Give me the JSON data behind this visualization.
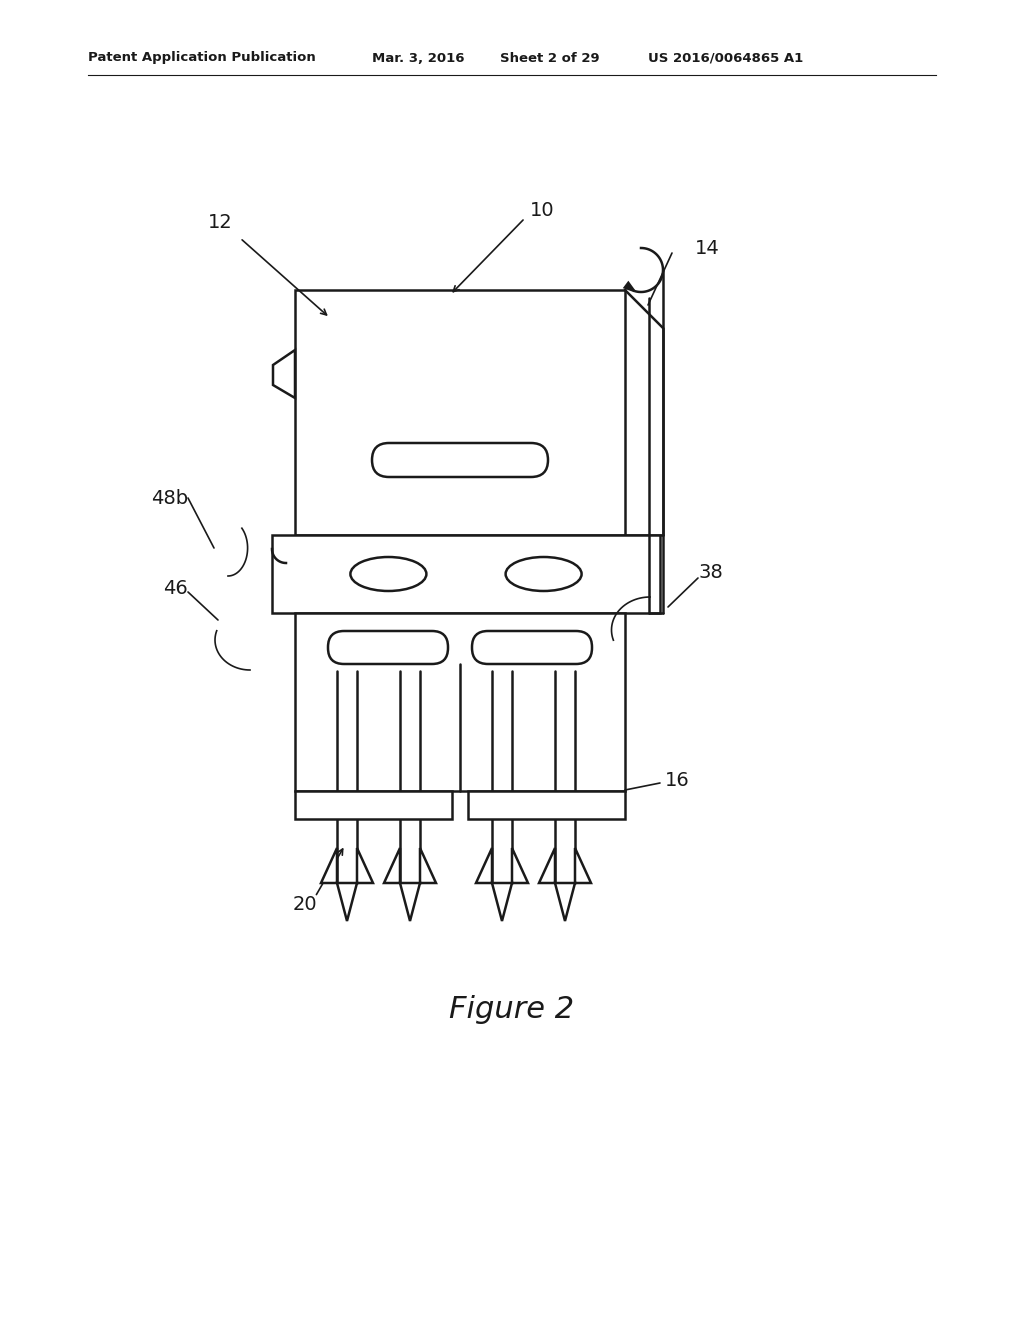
{
  "bg_color": "#ffffff",
  "line_color": "#1a1a1a",
  "lw": 1.8,
  "header_text": "Patent Application Publication",
  "header_date": "Mar. 3, 2016",
  "header_sheet": "Sheet 2 of 29",
  "header_patent": "US 2016/0064865 A1",
  "figure_label": "Figure 2"
}
